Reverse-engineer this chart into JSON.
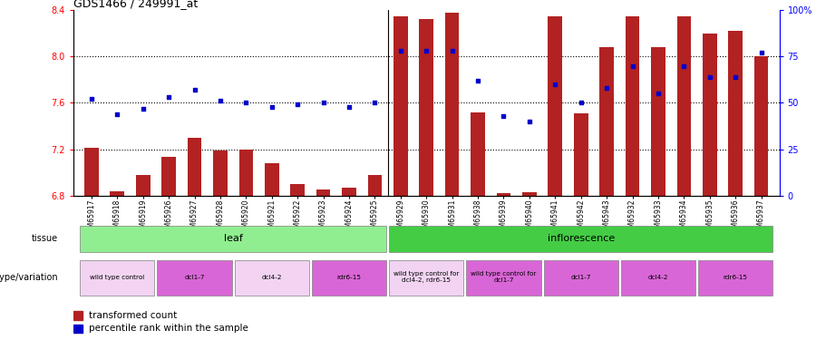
{
  "title": "GDS1466 / 249991_at",
  "samples": [
    "GSM65917",
    "GSM65918",
    "GSM65919",
    "GSM65926",
    "GSM65927",
    "GSM65928",
    "GSM65920",
    "GSM65921",
    "GSM65922",
    "GSM65923",
    "GSM65924",
    "GSM65925",
    "GSM65929",
    "GSM65930",
    "GSM65931",
    "GSM65938",
    "GSM65939",
    "GSM65940",
    "GSM65941",
    "GSM65942",
    "GSM65943",
    "GSM65932",
    "GSM65933",
    "GSM65934",
    "GSM65935",
    "GSM65936",
    "GSM65937"
  ],
  "bar_values": [
    7.21,
    6.84,
    6.98,
    7.13,
    7.3,
    7.19,
    7.2,
    7.08,
    6.9,
    6.85,
    6.87,
    6.98,
    8.35,
    8.32,
    8.38,
    7.52,
    6.82,
    6.83,
    8.35,
    7.51,
    8.08,
    8.35,
    8.08,
    8.35,
    8.2,
    8.22,
    8.0
  ],
  "dot_percentiles": [
    52,
    44,
    47,
    53,
    57,
    51,
    50,
    48,
    49,
    50,
    48,
    50,
    78,
    78,
    78,
    62,
    43,
    40,
    60,
    50,
    58,
    70,
    55,
    70,
    64,
    64,
    77
  ],
  "y_min": 6.8,
  "y_max": 8.4,
  "y_ticks": [
    6.8,
    7.2,
    7.6,
    8.0,
    8.4
  ],
  "y2_ticks": [
    0,
    25,
    50,
    75,
    100
  ],
  "bar_color": "#b22222",
  "dot_color": "#0000cc",
  "tissue_leaf_color": "#90ee90",
  "tissue_inflorescence_color": "#00cc00",
  "tissue_groups": [
    {
      "label": "leaf",
      "start": 0,
      "end": 11
    },
    {
      "label": "inflorescence",
      "start": 12,
      "end": 26
    }
  ],
  "genotype_groups": [
    {
      "label": "wild type control",
      "start": 0,
      "end": 2,
      "color": "#f0c8f0"
    },
    {
      "label": "dcl1-7",
      "start": 3,
      "end": 5,
      "color": "#dd88ee"
    },
    {
      "label": "dcl4-2",
      "start": 6,
      "end": 8,
      "color": "#f0c8f0"
    },
    {
      "label": "rdr6-15",
      "start": 9,
      "end": 11,
      "color": "#dd88ee"
    },
    {
      "label": "wild type control for\ndcl4-2, rdr6-15",
      "start": 12,
      "end": 14,
      "color": "#f0c8f0"
    },
    {
      "label": "wild type control for\ndcl1-7",
      "start": 15,
      "end": 17,
      "color": "#dd88ee"
    },
    {
      "label": "dcl1-7",
      "start": 18,
      "end": 20,
      "color": "#dd44cc"
    },
    {
      "label": "dcl4-2",
      "start": 21,
      "end": 23,
      "color": "#dd44cc"
    },
    {
      "label": "rdr6-15",
      "start": 24,
      "end": 26,
      "color": "#dd44cc"
    }
  ]
}
